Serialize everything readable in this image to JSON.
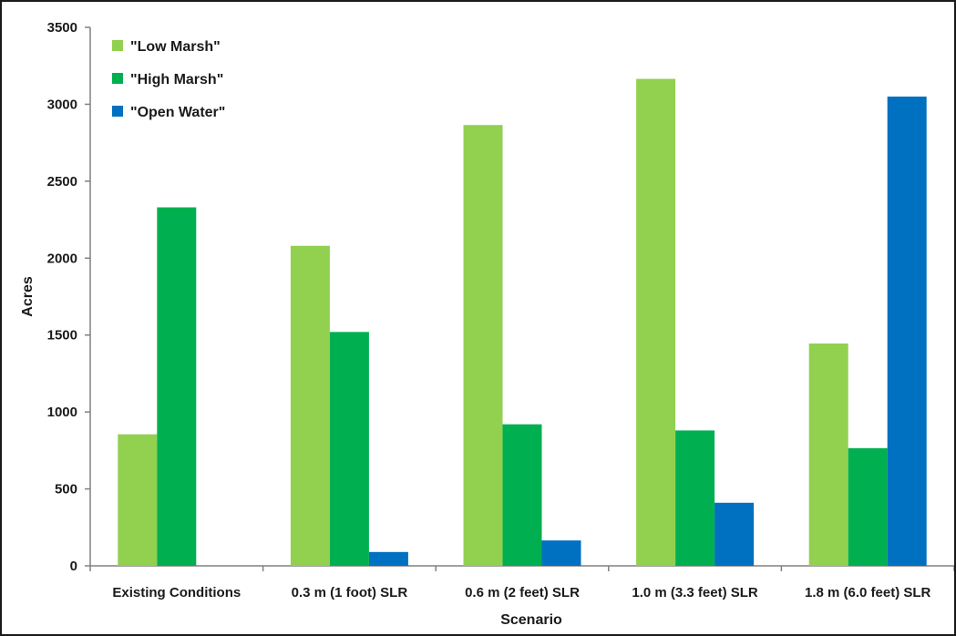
{
  "chart_data": {
    "type": "bar",
    "title": "",
    "xlabel": "Scenario",
    "ylabel": "Acres",
    "ylim": [
      0,
      3500
    ],
    "yticks": [
      0,
      500,
      1000,
      1500,
      2000,
      2500,
      3000,
      3500
    ],
    "grid": false,
    "legend_position": "top-left",
    "categories": [
      "Existing Conditions",
      "0.3 m (1 foot) SLR",
      "0.6 m (2 feet) SLR",
      "1.0 m (3.3 feet) SLR",
      "1.8 m (6.0 feet) SLR"
    ],
    "series": [
      {
        "name": "\"Low Marsh\"",
        "color": "#92d050",
        "values": [
          855,
          2080,
          2865,
          3165,
          1445
        ]
      },
      {
        "name": "\"High Marsh\"",
        "color": "#00b050",
        "values": [
          2330,
          1520,
          920,
          880,
          765
        ]
      },
      {
        "name": "\"Open Water\"",
        "color": "#0070c0",
        "values": [
          0,
          90,
          165,
          410,
          3050
        ]
      }
    ]
  }
}
